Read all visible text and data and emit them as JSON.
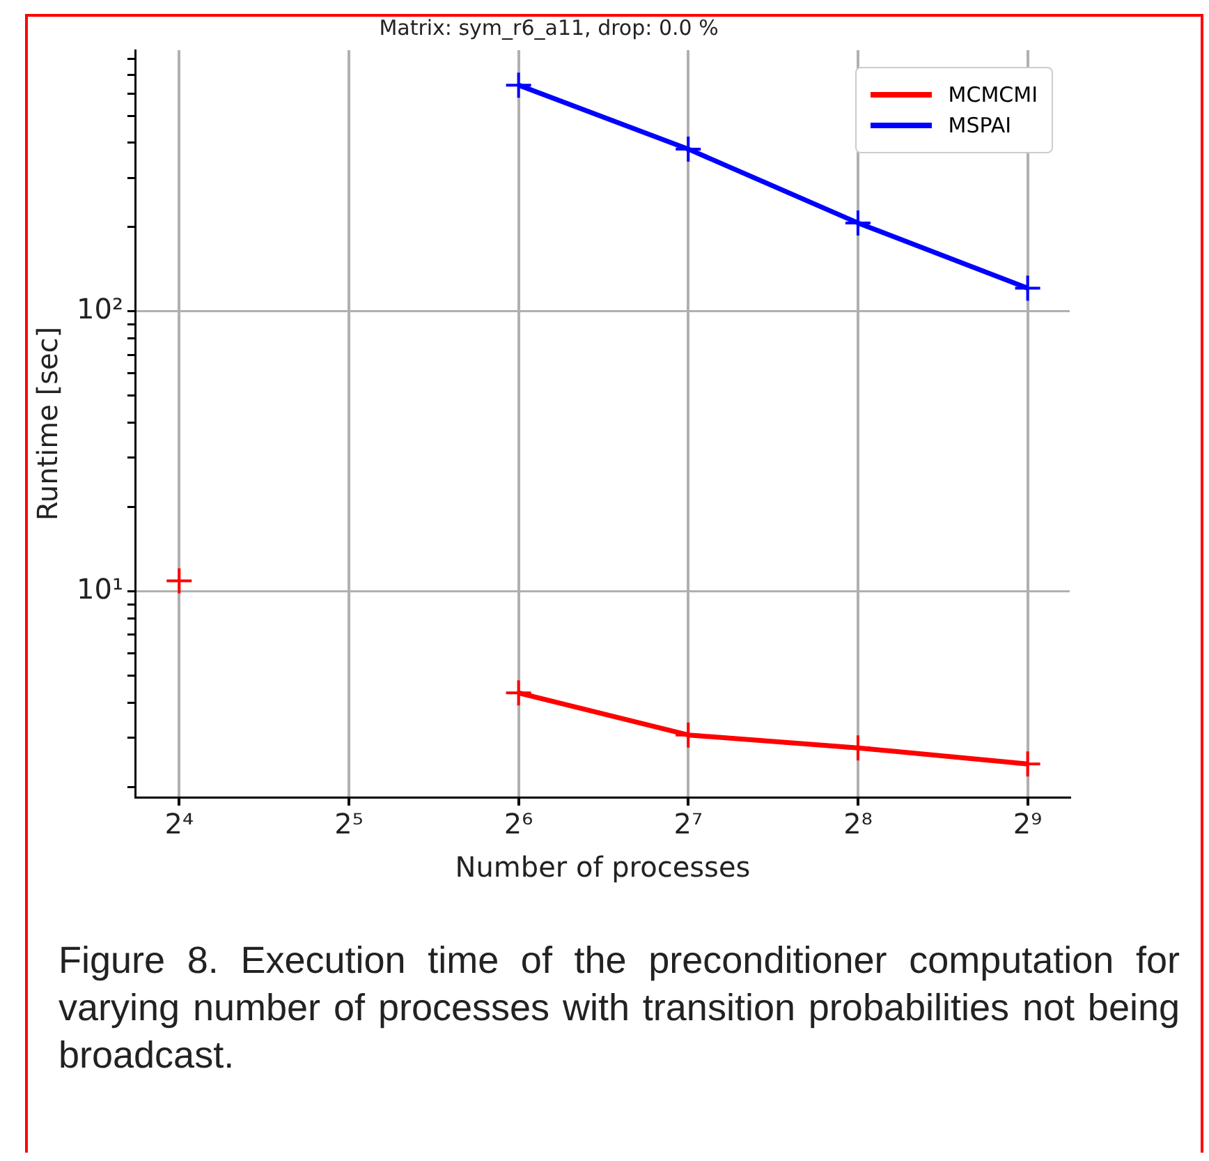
{
  "chart_data": {
    "type": "line",
    "title": "Matrix: sym_r6_a11, drop: 0.0 %",
    "xlabel": "Number of processes",
    "ylabel": "Runtime [sec]",
    "x": [
      16,
      32,
      64,
      128,
      256,
      512
    ],
    "series": [
      {
        "name": "MCMCMI",
        "color": "#ff0000",
        "values": [
          10.9,
          null,
          4.34,
          3.07,
          2.76,
          2.42
        ]
      },
      {
        "name": "MSPAI",
        "color": "#0000ff",
        "values": [
          null,
          null,
          643,
          380,
          207,
          121
        ]
      }
    ],
    "log": "xy",
    "xlim": [
      13.4,
      608
    ],
    "ylim": [
      1.84,
      857
    ],
    "xticks": [
      {
        "value": 16,
        "label": "2⁴"
      },
      {
        "value": 32,
        "label": "2⁵"
      },
      {
        "value": 64,
        "label": "2⁶"
      },
      {
        "value": 128,
        "label": "2⁷"
      },
      {
        "value": 256,
        "label": "2⁸"
      },
      {
        "value": 512,
        "label": "2⁹"
      }
    ],
    "yticks": [
      {
        "value": 2,
        "label": null
      },
      {
        "value": 3,
        "label": null
      },
      {
        "value": 4,
        "label": null
      },
      {
        "value": 5,
        "label": null
      },
      {
        "value": 6,
        "label": null
      },
      {
        "value": 7,
        "label": null
      },
      {
        "value": 8,
        "label": null
      },
      {
        "value": 9,
        "label": null
      },
      {
        "value": 10,
        "label": "10¹"
      },
      {
        "value": 20,
        "label": null
      },
      {
        "value": 30,
        "label": null
      },
      {
        "value": 40,
        "label": null
      },
      {
        "value": 50,
        "label": null
      },
      {
        "value": 60,
        "label": null
      },
      {
        "value": 70,
        "label": null
      },
      {
        "value": 80,
        "label": null
      },
      {
        "value": 90,
        "label": null
      },
      {
        "value": 100,
        "label": "10²"
      },
      {
        "value": 200,
        "label": null
      },
      {
        "value": 300,
        "label": null
      },
      {
        "value": 400,
        "label": null
      },
      {
        "value": 500,
        "label": null
      },
      {
        "value": 600,
        "label": null
      },
      {
        "value": 700,
        "label": null
      },
      {
        "value": 800,
        "label": null
      }
    ],
    "grid": true,
    "legend": "top right",
    "marker": "cross",
    "line_style": "solid",
    "annotations": [
      "Figure 8. Execution time of the preconditioner computation for varying number of processes with transition probabilities not being broadcast."
    ]
  }
}
